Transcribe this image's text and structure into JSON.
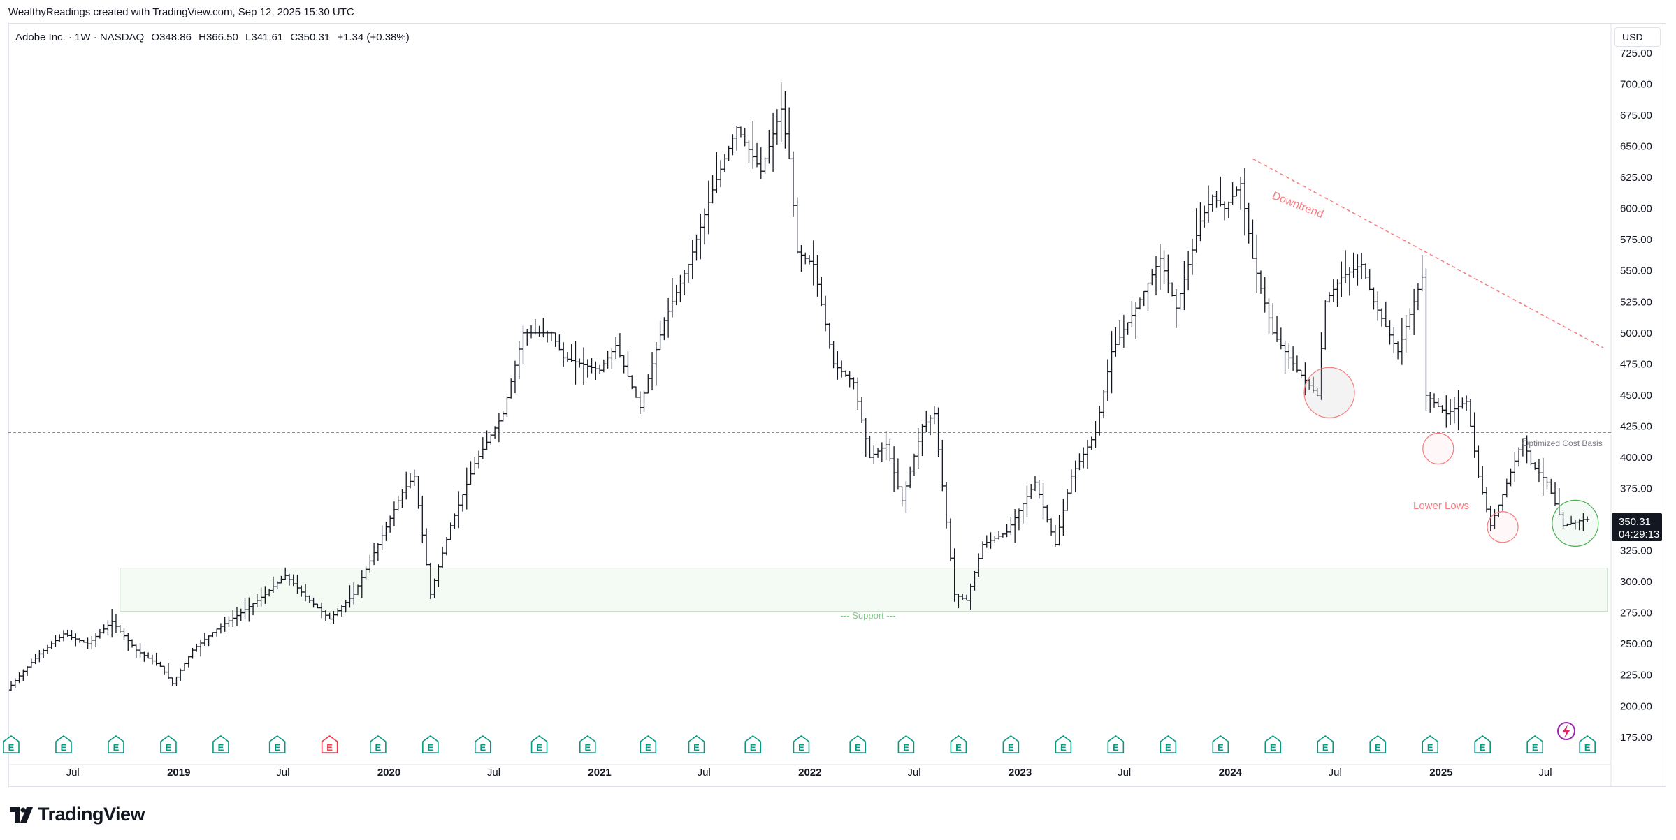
{
  "attribution": "WealthyReadings created with TradingView.com, Sep 12, 2025 15:30 UTC",
  "legend": {
    "name": "Adobe Inc. · 1W · NASDAQ",
    "open": "O348.86",
    "high": "H366.50",
    "low": "L341.61",
    "close": "C350.31",
    "change": "+1.34 (+0.38%)"
  },
  "currency": "USD",
  "brand": "TradingView",
  "price_label": {
    "price": "350.31",
    "countdown": "04:29:13"
  },
  "annotations": {
    "downtrend": "Downtrend",
    "cost_basis": "Optimized Cost Basis",
    "lower_lows": "Lower Lows",
    "support": "--- Support ---"
  },
  "event_markers": [
    "E",
    "E",
    "E",
    "E",
    "E",
    "E",
    "E",
    "E",
    "E",
    "E",
    "E",
    "E",
    "E",
    "E",
    "E",
    "E",
    "E",
    "E",
    "E",
    "E",
    "E",
    "E",
    "E",
    "E",
    "E",
    "E",
    "E",
    "E",
    "E",
    "E",
    "E"
  ],
  "colors": {
    "bars": "#131722",
    "downtrend": "#f77c80",
    "support_fill": "#f4faf4",
    "support_border": "#a5d6a7",
    "earnings": "#089981",
    "earnings_miss": "#f23645",
    "cost_basis_line": "#787b86",
    "highlight_circle_green": "#4caf50",
    "highlight_circle_red": "#f77c80"
  },
  "chart_data": {
    "type": "ohlc-bar",
    "symbol": "ADBE",
    "timeframe": "1W",
    "y_axis": {
      "ticks": [
        175,
        200,
        225,
        250,
        275,
        300,
        325,
        350,
        375,
        400,
        425,
        450,
        475,
        500,
        525,
        550,
        575,
        600,
        625,
        650,
        675,
        700,
        725
      ],
      "ylim": [
        153,
        748
      ],
      "tick_suffix": ".00"
    },
    "x_axis": {
      "xlim": [
        "2018-03-16",
        "2025-10-17"
      ],
      "ticks": [
        {
          "label": "Jul",
          "date": "2018-07-01",
          "bold": false
        },
        {
          "label": "2019",
          "date": "2019-01-01",
          "bold": true
        },
        {
          "label": "Jul",
          "date": "2019-07-01",
          "bold": false
        },
        {
          "label": "2020",
          "date": "2020-01-01",
          "bold": true
        },
        {
          "label": "Jul",
          "date": "2020-07-01",
          "bold": false
        },
        {
          "label": "2021",
          "date": "2021-01-01",
          "bold": true
        },
        {
          "label": "Jul",
          "date": "2021-07-01",
          "bold": false
        },
        {
          "label": "2022",
          "date": "2022-01-01",
          "bold": true
        },
        {
          "label": "Jul",
          "date": "2022-07-01",
          "bold": false
        },
        {
          "label": "2023",
          "date": "2023-01-01",
          "bold": true
        },
        {
          "label": "Jul",
          "date": "2023-07-01",
          "bold": false
        },
        {
          "label": "2024",
          "date": "2024-01-01",
          "bold": true
        },
        {
          "label": "Jul",
          "date": "2024-07-01",
          "bold": false
        },
        {
          "label": "2025",
          "date": "2025-01-01",
          "bold": true
        },
        {
          "label": "Jul",
          "date": "2025-07-01",
          "bold": false
        }
      ]
    },
    "price_path": [
      [
        "2018-03-16",
        213
      ],
      [
        "2018-04-13",
        228
      ],
      [
        "2018-05-11",
        242
      ],
      [
        "2018-06-22",
        258
      ],
      [
        "2018-08-03",
        250
      ],
      [
        "2018-09-14",
        268
      ],
      [
        "2018-10-26",
        245
      ],
      [
        "2018-12-07",
        232
      ],
      [
        "2018-12-28",
        218
      ],
      [
        "2019-02-01",
        245
      ],
      [
        "2019-03-15",
        262
      ],
      [
        "2019-04-26",
        275
      ],
      [
        "2019-06-07",
        290
      ],
      [
        "2019-07-12",
        305
      ],
      [
        "2019-08-23",
        285
      ],
      [
        "2019-09-27",
        270
      ],
      [
        "2019-11-08",
        290
      ],
      [
        "2019-12-20",
        330
      ],
      [
        "2020-01-31",
        372
      ],
      [
        "2020-02-21",
        385
      ],
      [
        "2020-03-20",
        290
      ],
      [
        "2020-04-24",
        345
      ],
      [
        "2020-06-05",
        395
      ],
      [
        "2020-07-24",
        435
      ],
      [
        "2020-08-28",
        500
      ],
      [
        "2020-10-16",
        500
      ],
      [
        "2020-11-06",
        480
      ],
      [
        "2021-01-08",
        470
      ],
      [
        "2021-02-05",
        490
      ],
      [
        "2021-03-19",
        440
      ],
      [
        "2021-04-30",
        510
      ],
      [
        "2021-06-11",
        555
      ],
      [
        "2021-07-23",
        615
      ],
      [
        "2021-09-03",
        665
      ],
      [
        "2021-10-15",
        630
      ],
      [
        "2021-11-19",
        680
      ],
      [
        "2021-12-03",
        640
      ],
      [
        "2021-12-17",
        565
      ],
      [
        "2022-01-14",
        555
      ],
      [
        "2022-02-18",
        475
      ],
      [
        "2022-03-25",
        460
      ],
      [
        "2022-04-22",
        400
      ],
      [
        "2022-05-20",
        410
      ],
      [
        "2022-06-17",
        365
      ],
      [
        "2022-07-22",
        425
      ],
      [
        "2022-08-12",
        435
      ],
      [
        "2022-09-16",
        290
      ],
      [
        "2022-10-07",
        285
      ],
      [
        "2022-11-04",
        330
      ],
      [
        "2022-12-16",
        340
      ],
      [
        "2023-02-03",
        380
      ],
      [
        "2023-03-10",
        330
      ],
      [
        "2023-04-07",
        385
      ],
      [
        "2023-05-19",
        420
      ],
      [
        "2023-06-16",
        485
      ],
      [
        "2023-07-28",
        520
      ],
      [
        "2023-09-08",
        560
      ],
      [
        "2023-10-06",
        520
      ],
      [
        "2023-11-17",
        590
      ],
      [
        "2023-12-08",
        610
      ],
      [
        "2023-12-29",
        600
      ],
      [
        "2024-01-26",
        620
      ],
      [
        "2024-02-16",
        560
      ],
      [
        "2024-03-22",
        500
      ],
      [
        "2024-05-03",
        470
      ],
      [
        "2024-06-07",
        450
      ],
      [
        "2024-06-21",
        525
      ],
      [
        "2024-07-19",
        545
      ],
      [
        "2024-08-23",
        555
      ],
      [
        "2024-09-13",
        525
      ],
      [
        "2024-10-25",
        485
      ],
      [
        "2024-12-06",
        545
      ],
      [
        "2024-12-13",
        450
      ],
      [
        "2025-01-17",
        435
      ],
      [
        "2025-02-21",
        445
      ],
      [
        "2025-03-14",
        385
      ],
      [
        "2025-04-04",
        345
      ],
      [
        "2025-04-25",
        370
      ],
      [
        "2025-05-30",
        415
      ],
      [
        "2025-06-13",
        395
      ],
      [
        "2025-07-11",
        380
      ],
      [
        "2025-08-08",
        345
      ],
      [
        "2025-09-12",
        350
      ]
    ],
    "cost_basis_level": 420,
    "support_zone": {
      "from": "2018-09-21",
      "to": "2025-10-17",
      "low": 276,
      "high": 311
    },
    "downtrend_line": [
      [
        "2024-02-09",
        640
      ],
      [
        "2025-10-10",
        488
      ]
    ],
    "highlight_circles": [
      {
        "date": "2024-06-21",
        "price": 452,
        "color": "red",
        "fill": true
      },
      {
        "date": "2024-12-27",
        "price": 407,
        "color": "red",
        "fill": false
      },
      {
        "date": "2025-04-18",
        "price": 344,
        "color": "red",
        "fill": false
      },
      {
        "date": "2025-08-22",
        "price": 347,
        "color": "green",
        "fill": false
      }
    ],
    "event_dates": [
      "2018-03-16",
      "2018-06-15",
      "2018-09-14",
      "2018-12-14",
      "2019-03-15",
      "2019-06-21",
      "2019-09-20",
      "2019-12-13",
      "2020-03-13",
      "2020-06-12",
      "2020-09-18",
      "2020-12-11",
      "2021-03-26",
      "2021-06-18",
      "2021-09-24",
      "2021-12-17",
      "2022-03-25",
      "2022-06-17",
      "2022-09-16",
      "2022-12-16",
      "2023-03-17",
      "2023-06-16",
      "2023-09-15",
      "2023-12-15",
      "2024-03-15",
      "2024-06-14",
      "2024-09-13",
      "2024-12-13",
      "2025-03-14",
      "2025-06-13",
      "2025-09-12"
    ]
  }
}
